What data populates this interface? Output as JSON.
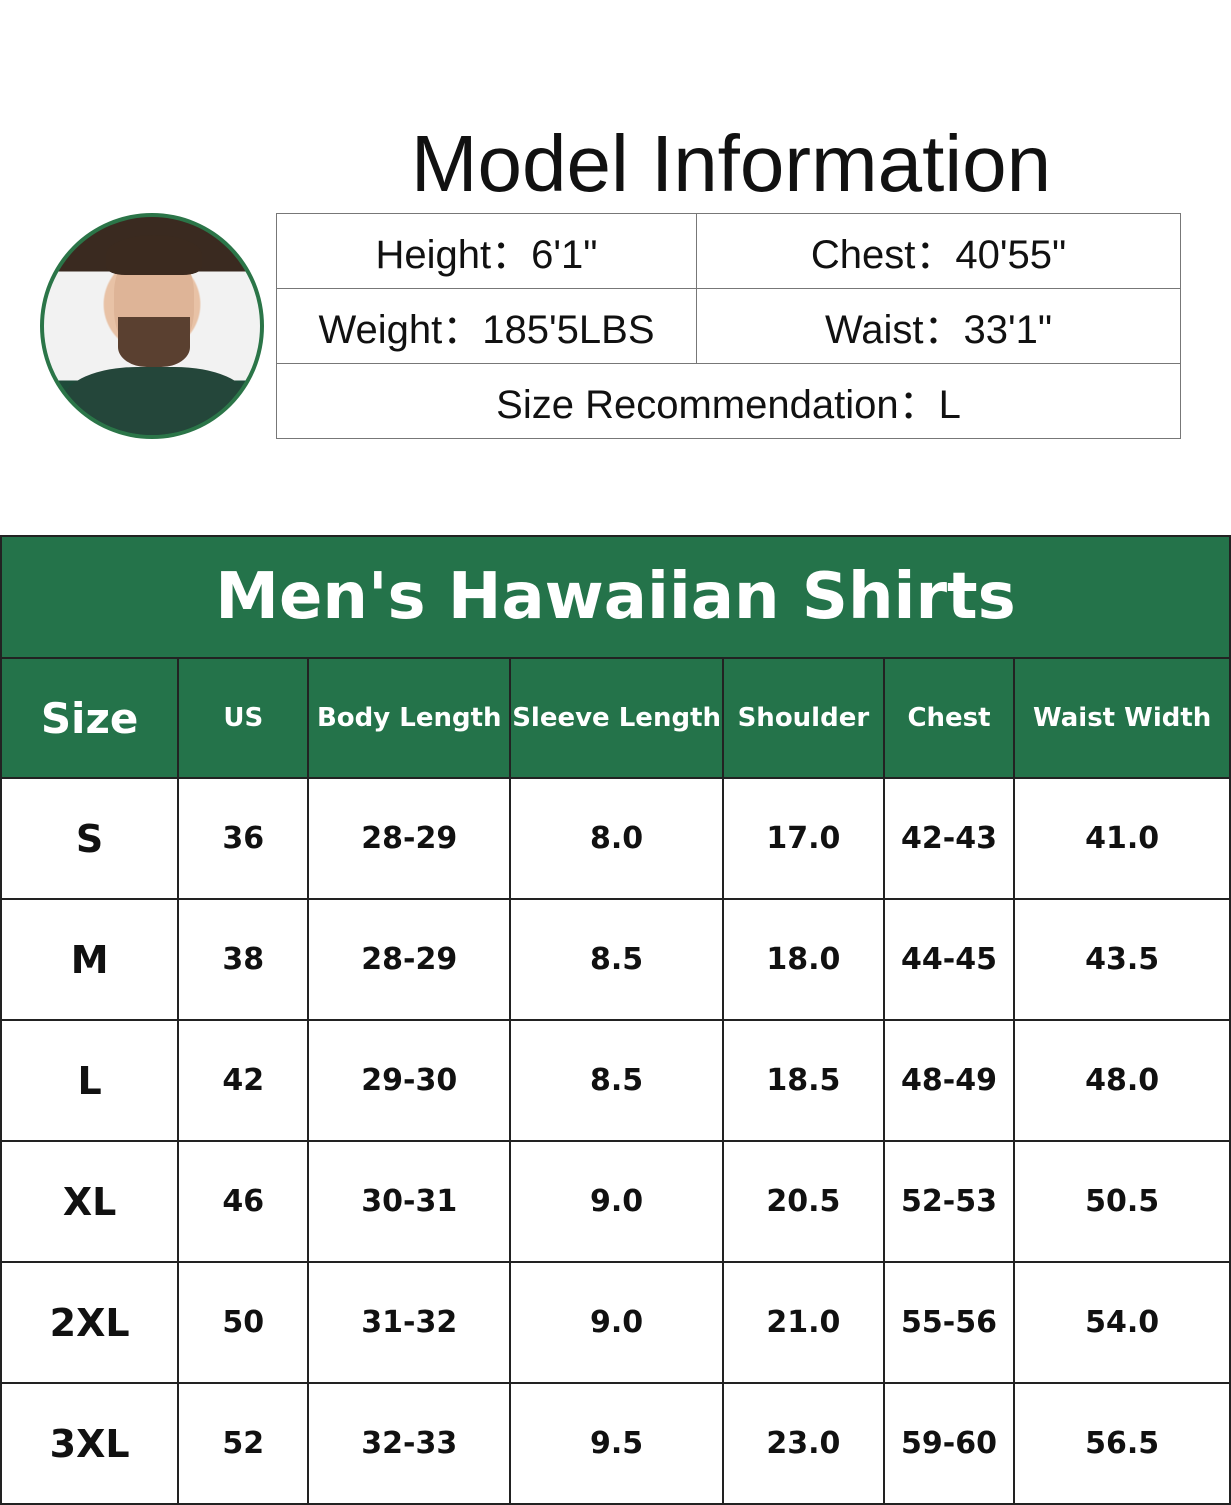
{
  "model_info": {
    "title": "Model Information",
    "height": "Height：6'1\"",
    "chest": "Chest：40'55\"",
    "weight": "Weight：185'5LBS",
    "waist": "Waist：33'1\"",
    "size_recommendation": "Size Recommendation：L"
  },
  "size_chart": {
    "title": "Men's Hawaiian Shirts",
    "header_color": "#24734a",
    "columns": [
      "Size",
      "US",
      "Body Length",
      "Sleeve Length",
      "Shoulder",
      "Chest",
      "Waist Width"
    ],
    "rows": [
      [
        "S",
        "36",
        "28-29",
        "8.0",
        "17.0",
        "42-43",
        "41.0"
      ],
      [
        "M",
        "38",
        "28-29",
        "8.5",
        "18.0",
        "44-45",
        "43.5"
      ],
      [
        "L",
        "42",
        "29-30",
        "8.5",
        "18.5",
        "48-49",
        "48.0"
      ],
      [
        "XL",
        "46",
        "30-31",
        "9.0",
        "20.5",
        "52-53",
        "50.5"
      ],
      [
        "2XL",
        "50",
        "31-32",
        "9.0",
        "21.0",
        "55-56",
        "54.0"
      ],
      [
        "3XL",
        "52",
        "32-33",
        "9.5",
        "23.0",
        "59-60",
        "56.5"
      ]
    ]
  }
}
